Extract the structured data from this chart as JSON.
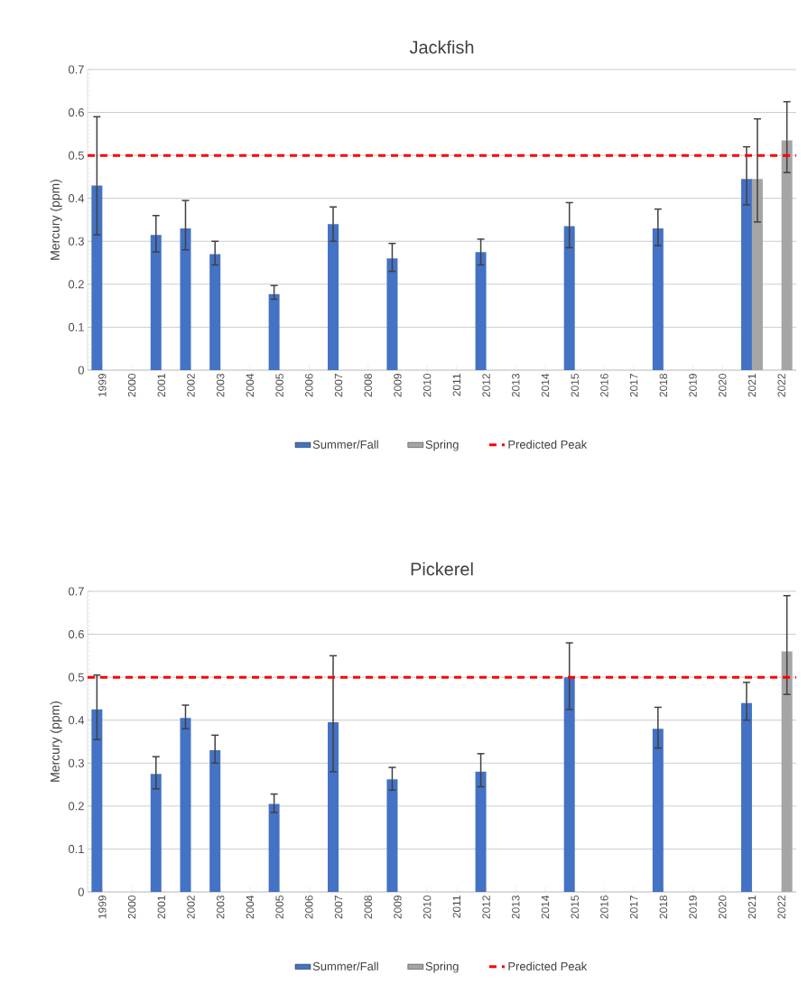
{
  "chart_data": [
    {
      "type": "bar",
      "title": "Jackfish",
      "ylabel": "Mercury (ppm)",
      "categories": [
        "1999",
        "2000",
        "2001",
        "2002",
        "2003",
        "2004",
        "2005",
        "2006",
        "2007",
        "2008",
        "2009",
        "2010",
        "2011",
        "2012",
        "2013",
        "2014",
        "2015",
        "2016",
        "2017",
        "2018",
        "2019",
        "2020",
        "2021",
        "2022"
      ],
      "series": [
        {
          "name": "Summer/Fall",
          "color": "#4472c4",
          "values": [
            0.43,
            null,
            0.315,
            0.33,
            0.27,
            null,
            0.177,
            null,
            0.34,
            null,
            0.26,
            null,
            null,
            0.275,
            null,
            null,
            0.335,
            null,
            null,
            0.33,
            null,
            null,
            0.445,
            null
          ],
          "errors": [
            [
              0.315,
              0.59
            ],
            null,
            [
              0.275,
              0.36
            ],
            [
              0.28,
              0.395
            ],
            [
              0.245,
              0.3
            ],
            null,
            [
              0.165,
              0.197
            ],
            null,
            [
              0.3,
              0.38
            ],
            null,
            [
              0.23,
              0.295
            ],
            null,
            null,
            [
              0.245,
              0.305
            ],
            null,
            null,
            [
              0.285,
              0.39
            ],
            null,
            null,
            [
              0.29,
              0.375
            ],
            null,
            null,
            [
              0.385,
              0.52
            ],
            null
          ]
        },
        {
          "name": "Spring",
          "color": "#a5a5a5",
          "values": [
            null,
            null,
            null,
            null,
            null,
            null,
            null,
            null,
            null,
            null,
            null,
            null,
            null,
            null,
            null,
            null,
            null,
            null,
            null,
            null,
            null,
            null,
            0.445,
            0.535
          ],
          "errors": [
            null,
            null,
            null,
            null,
            null,
            null,
            null,
            null,
            null,
            null,
            null,
            null,
            null,
            null,
            null,
            null,
            null,
            null,
            null,
            null,
            null,
            null,
            [
              0.345,
              0.585
            ],
            [
              0.46,
              0.625
            ]
          ]
        }
      ],
      "ref_lines": [
        {
          "axis": "y",
          "value": 0.5,
          "label": "Predicted Peak",
          "color": "#ff0000",
          "line_style": "dashed"
        }
      ],
      "ylim": [
        0,
        0.7
      ],
      "yticks": [
        0,
        0.1,
        0.2,
        0.3,
        0.4,
        0.5,
        0.6,
        0.7
      ],
      "grid": "y",
      "legend": "bottom"
    },
    {
      "type": "bar",
      "title": "Pickerel",
      "ylabel": "Mercury (ppm)",
      "categories": [
        "1999",
        "2000",
        "2001",
        "2002",
        "2003",
        "2004",
        "2005",
        "2006",
        "2007",
        "2008",
        "2009",
        "2010",
        "2011",
        "2012",
        "2013",
        "2014",
        "2015",
        "2016",
        "2017",
        "2018",
        "2019",
        "2020",
        "2021",
        "2022"
      ],
      "series": [
        {
          "name": "Summer/Fall",
          "color": "#4472c4",
          "values": [
            0.425,
            null,
            0.275,
            0.405,
            0.33,
            null,
            0.205,
            null,
            0.395,
            null,
            0.262,
            null,
            null,
            0.28,
            null,
            null,
            0.5,
            null,
            null,
            0.38,
            null,
            null,
            0.44,
            null
          ],
          "errors": [
            [
              0.355,
              0.505
            ],
            null,
            [
              0.24,
              0.315
            ],
            [
              0.38,
              0.435
            ],
            [
              0.3,
              0.365
            ],
            null,
            [
              0.185,
              0.228
            ],
            null,
            [
              0.28,
              0.55
            ],
            null,
            [
              0.237,
              0.29
            ],
            null,
            null,
            [
              0.245,
              0.322
            ],
            null,
            null,
            [
              0.425,
              0.58
            ],
            null,
            null,
            [
              0.335,
              0.43
            ],
            null,
            null,
            [
              0.4,
              0.488
            ],
            null
          ]
        },
        {
          "name": "Spring",
          "color": "#a5a5a5",
          "values": [
            null,
            null,
            null,
            null,
            null,
            null,
            null,
            null,
            null,
            null,
            null,
            null,
            null,
            null,
            null,
            null,
            null,
            null,
            null,
            null,
            null,
            null,
            null,
            0.56
          ],
          "errors": [
            null,
            null,
            null,
            null,
            null,
            null,
            null,
            null,
            null,
            null,
            null,
            null,
            null,
            null,
            null,
            null,
            null,
            null,
            null,
            null,
            null,
            null,
            null,
            [
              0.46,
              0.69
            ]
          ]
        }
      ],
      "ref_lines": [
        {
          "axis": "y",
          "value": 0.5,
          "label": "Predicted Peak",
          "color": "#ff0000",
          "line_style": "dashed"
        }
      ],
      "ylim": [
        0,
        0.7
      ],
      "yticks": [
        0,
        0.1,
        0.2,
        0.3,
        0.4,
        0.5,
        0.6,
        0.7
      ],
      "grid": "y",
      "legend": "bottom"
    }
  ]
}
